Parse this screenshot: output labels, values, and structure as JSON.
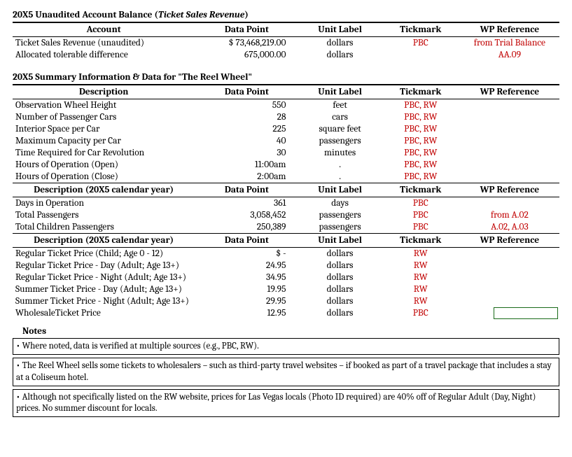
{
  "section1": {
    "title_prefix": "20X5 Unaudited Account Balance (",
    "title_italic": "Ticket Sales Revenue",
    "title_suffix": ")",
    "headers": [
      "Account",
      "Data Point",
      "Unit Label",
      "Tickmark",
      "WP Reference"
    ],
    "rows": [
      {
        "desc": "Ticket Sales Revenue (unaudited)",
        "dp": "$ 73,468,219.00",
        "unit": "dollars",
        "tick": "PBC",
        "wp": "from Trial Balance"
      },
      {
        "desc": "Allocated tolerable difference",
        "dp": "675,000.00",
        "unit": "dollars",
        "tick": "",
        "wp": "AA.09"
      }
    ]
  },
  "section2": {
    "title": "20X5 Summary Information & Data for \"The Reel Wheel\"",
    "headers": [
      "Description",
      "Data Point",
      "Unit Label",
      "Tickmark",
      "WP Reference"
    ],
    "rowsA": [
      {
        "desc": "Observation Wheel Height",
        "dp": "550",
        "unit": "feet",
        "tick": "PBC, RW",
        "wp": ""
      },
      {
        "desc": "Number of Passenger Cars",
        "dp": "28",
        "unit": "cars",
        "tick": "PBC, RW",
        "wp": ""
      },
      {
        "desc": "Interior Space per Car",
        "dp": "225",
        "unit": "square feet",
        "tick": "PBC, RW",
        "wp": ""
      },
      {
        "desc": "Maximum Capacity per Car",
        "dp": "40",
        "unit": "passengers",
        "tick": "PBC, RW",
        "wp": ""
      },
      {
        "desc": "Time Required for Car Revolution",
        "dp": "30",
        "unit": "minutes",
        "tick": "PBC, RW",
        "wp": ""
      },
      {
        "desc": "Hours of Operation (Open)",
        "dp": "11:00am",
        "unit": ".",
        "tick": "PBC, RW",
        "wp": ""
      },
      {
        "desc": "Hours of Operation (Close)",
        "dp": "2:00am",
        "unit": ".",
        "tick": "PBC, RW",
        "wp": ""
      }
    ],
    "subheaderB": "Description (20X5 calendar year)",
    "rowsB": [
      {
        "desc": "Days in Operation",
        "dp": "361",
        "unit": "days",
        "tick": "PBC",
        "wp": ""
      },
      {
        "desc": "Total Passengers",
        "dp": "3,058,452",
        "unit": "passengers",
        "tick": "PBC",
        "wp": "from A.02"
      },
      {
        "desc": "Total Children Passengers",
        "dp": "250,389",
        "unit": "passengers",
        "tick": "PBC",
        "wp": "A.02, A.03"
      }
    ],
    "subheaderC": "Description (20X5 calendar year)",
    "rowsC": [
      {
        "desc": "Regular Ticket Price (Child; Age 0 - 12)",
        "dp": "$                             -",
        "unit": "dollars",
        "tick": "RW",
        "wp": ""
      },
      {
        "desc": "Regular Ticket Price - Day (Adult; Age 13+)",
        "dp": "24.95",
        "unit": "dollars",
        "tick": "RW",
        "wp": ""
      },
      {
        "desc": "Regular Ticket Price - Night (Adult; Age 13+)",
        "dp": "34.95",
        "unit": "dollars",
        "tick": "RW",
        "wp": ""
      },
      {
        "desc": "Summer Ticket Price - Day (Adult; Age 13+)",
        "dp": "19.95",
        "unit": "dollars",
        "tick": "RW",
        "wp": ""
      },
      {
        "desc": "Summer Ticket Price - Night (Adult; Age 13+)",
        "dp": "29.95",
        "unit": "dollars",
        "tick": "RW",
        "wp": ""
      },
      {
        "desc": "WholesaleTicket Price",
        "dp": "12.95",
        "unit": "dollars",
        "tick": "PBC",
        "wp": ""
      }
    ]
  },
  "notes": {
    "title": "Notes",
    "items": [
      "• Where noted, data is verified at multiple sources (e.g., PBC, RW).",
      "• The Reel Wheel sells some tickets to wholesalers – such as third-party travel websites – if booked as part of a travel package that includes a stay at a Coliseum hotel.",
      "• Although not specifically listed on the RW website, prices for Las Vegas locals (Photo ID required) are 40% off of Regular Adult (Day, Night) prices. No summer discount for locals."
    ]
  }
}
